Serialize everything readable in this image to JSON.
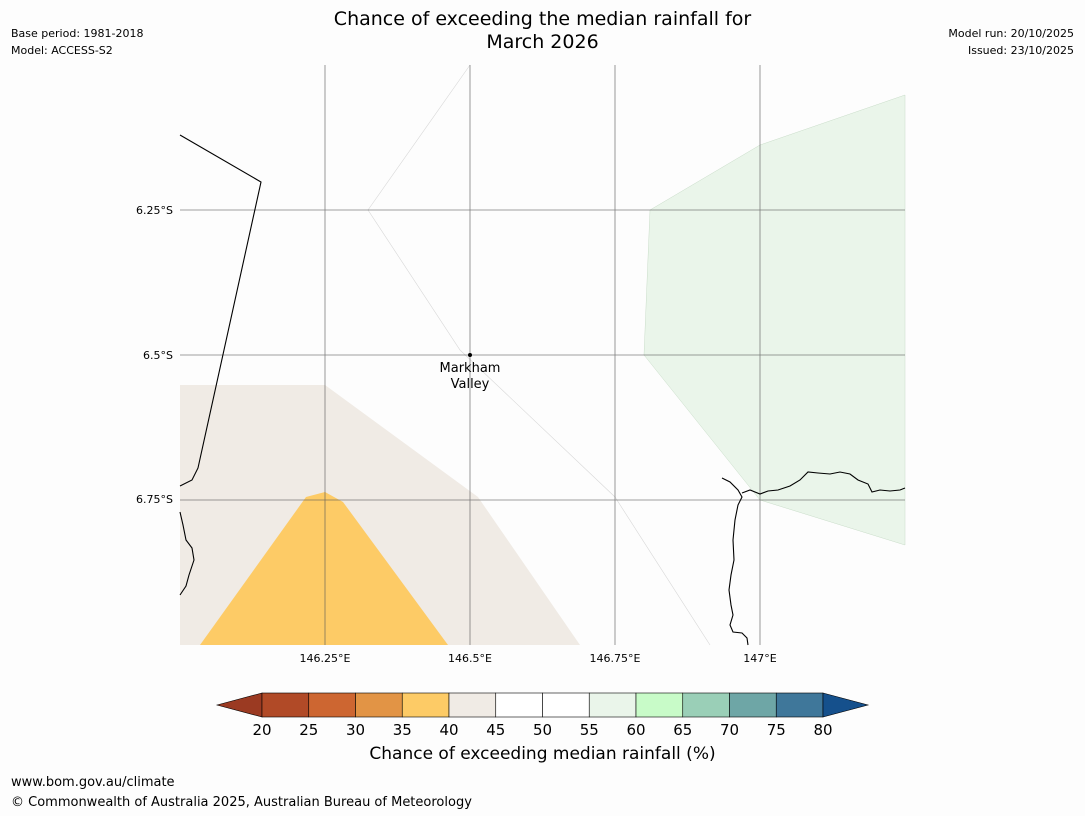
{
  "title_line1": "Chance of exceeding the median rainfall for",
  "title_line2": "March 2026",
  "base_period": "Base period: 1981-2018",
  "model": "Model: ACCESS-S2",
  "model_run": "Model run: 20/10/2025",
  "issued": "Issued: 23/10/2025",
  "map": {
    "lat_labels": [
      "6.25°S",
      "6.5°S",
      "6.75°S"
    ],
    "lon_labels": [
      "146.25°E",
      "146.5°E",
      "146.75°E",
      "147°E"
    ],
    "place": {
      "line1": "Markham",
      "line2": "Valley"
    },
    "colors": {
      "tan": "#f0ebe5",
      "orange": "#fdcb66",
      "light_green": "#eaf5ea",
      "grid": "#555555",
      "coast": "#000000"
    }
  },
  "colorbar": {
    "ticks": [
      "20",
      "25",
      "30",
      "35",
      "40",
      "45",
      "50",
      "55",
      "60",
      "65",
      "70",
      "75",
      "80"
    ],
    "under_color": "#9b3a22",
    "over_color": "#15508c",
    "colors": [
      "#b14a27",
      "#cd6631",
      "#e29445",
      "#fdcb66",
      "#f0ebe5",
      "#ffffff",
      "#ffffff",
      "#eaf5ea",
      "#c8fbc8",
      "#9acfb7",
      "#6ea6a6",
      "#3f779a"
    ],
    "label": "Chance of exceeding median rainfall (%)"
  },
  "footer": {
    "url": "www.bom.gov.au/climate",
    "copyright": "© Commonwealth of Australia 2025, Australian Bureau of Meteorology"
  }
}
